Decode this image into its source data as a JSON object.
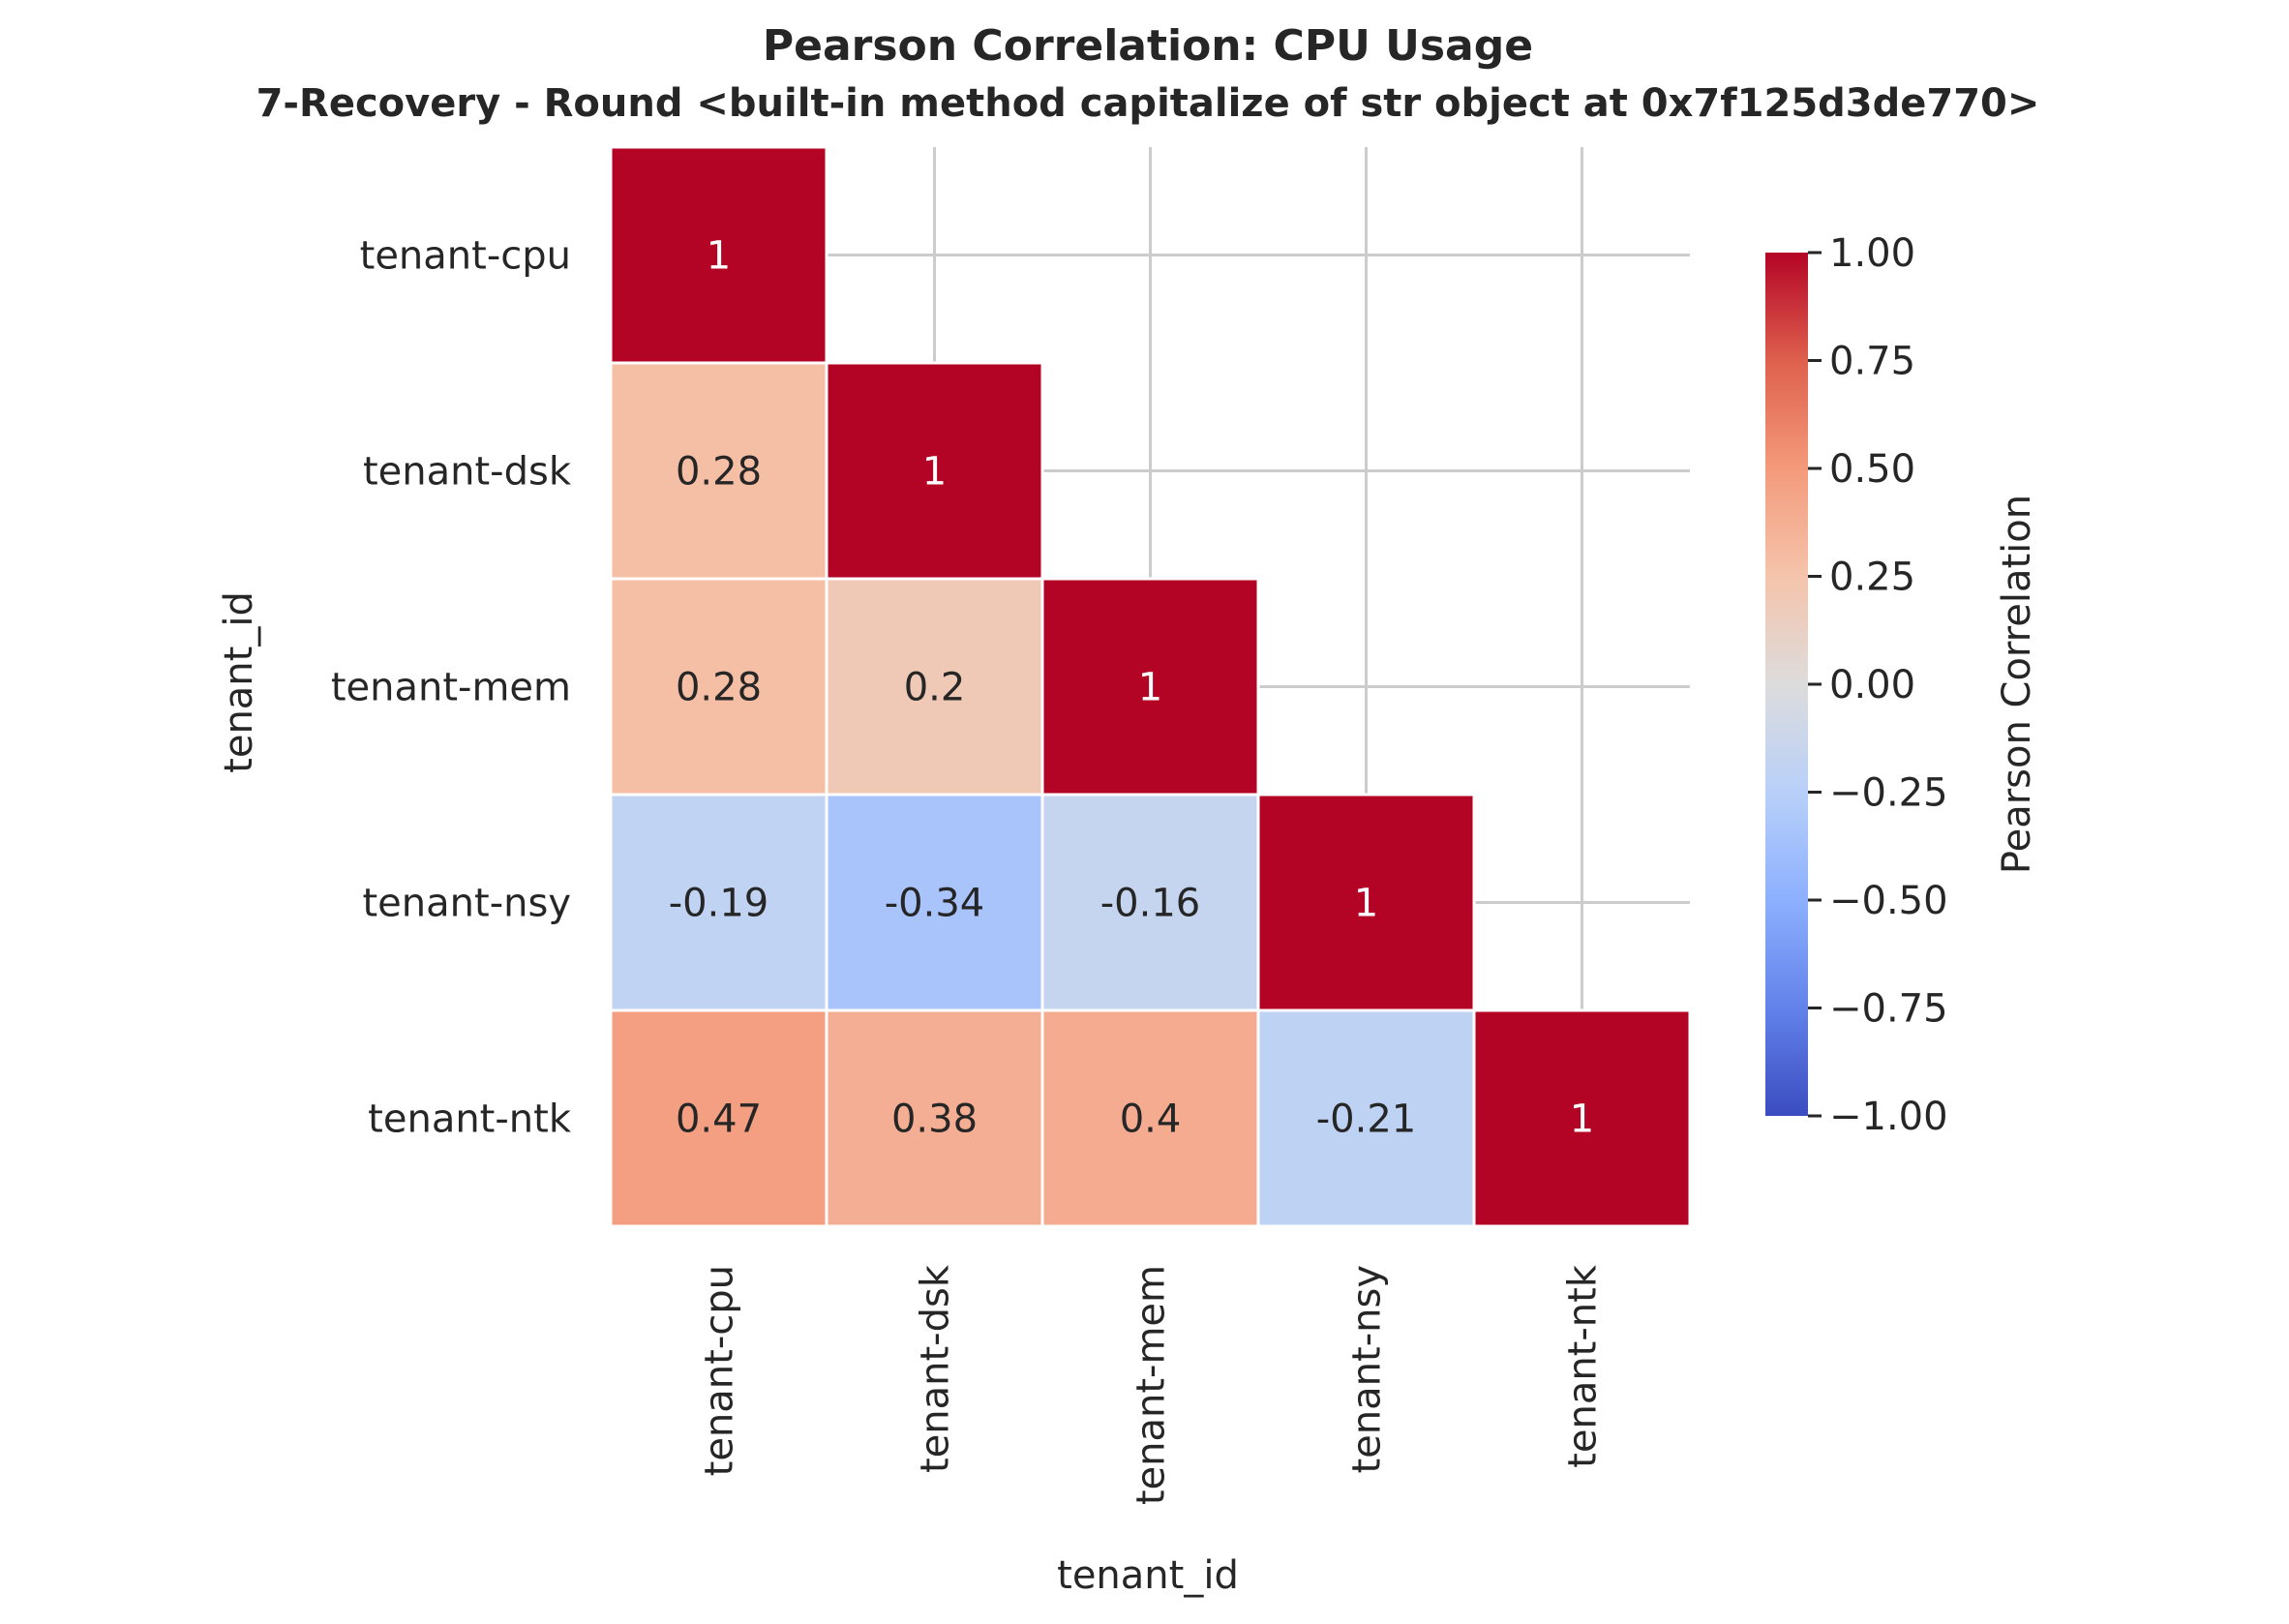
{
  "chart_data": {
    "type": "heatmap",
    "title_line1": "Pearson Correlation: CPU Usage",
    "title_line2": "7-Recovery - Round <built-in method capitalize of str object at 0x7f125d3de770>",
    "xlabel": "tenant_id",
    "ylabel": "tenant_id",
    "rows": [
      "tenant-cpu",
      "tenant-dsk",
      "tenant-mem",
      "tenant-nsy",
      "tenant-ntk"
    ],
    "cols": [
      "tenant-cpu",
      "tenant-dsk",
      "tenant-mem",
      "tenant-nsy",
      "tenant-ntk"
    ],
    "matrix": [
      [
        1,
        null,
        null,
        null,
        null
      ],
      [
        0.28,
        1,
        null,
        null,
        null
      ],
      [
        0.28,
        0.2,
        1,
        null,
        null
      ],
      [
        -0.19,
        -0.34,
        -0.16,
        1,
        null
      ],
      [
        0.47,
        0.38,
        0.4,
        -0.21,
        1
      ]
    ],
    "value_labels": [
      [
        "1",
        "",
        "",
        "",
        ""
      ],
      [
        "0.28",
        "1",
        "",
        "",
        ""
      ],
      [
        "0.28",
        "0.2",
        "1",
        "",
        ""
      ],
      [
        "-0.19",
        "-0.34",
        "-0.16",
        "1",
        ""
      ],
      [
        "0.47",
        "0.38",
        "0.4",
        "-0.21",
        "1"
      ]
    ],
    "mask": "upper-triangle",
    "colormap": "coolwarm",
    "vmin": -1,
    "vmax": 1,
    "grid": true,
    "colorbar": {
      "label": "Pearson Correlation",
      "ticks": [
        1.0,
        0.75,
        0.5,
        0.25,
        0.0,
        -0.25,
        -0.5,
        -0.75,
        -1.0
      ],
      "tick_labels": [
        "1.00",
        "0.75",
        "0.50",
        "0.25",
        "0.00",
        "−0.25",
        "−0.50",
        "−0.75",
        "−1.00"
      ]
    },
    "colors": {
      "grid": "#cccccc",
      "text": "#262626",
      "cell_border": "#ffffff",
      "cmap_stops": [
        "#3b4cc0",
        "#6282ea",
        "#8db0fe",
        "#b8d0f9",
        "#dddcdc",
        "#f5c4ac",
        "#f49a7b",
        "#de604d",
        "#b40426"
      ]
    }
  }
}
